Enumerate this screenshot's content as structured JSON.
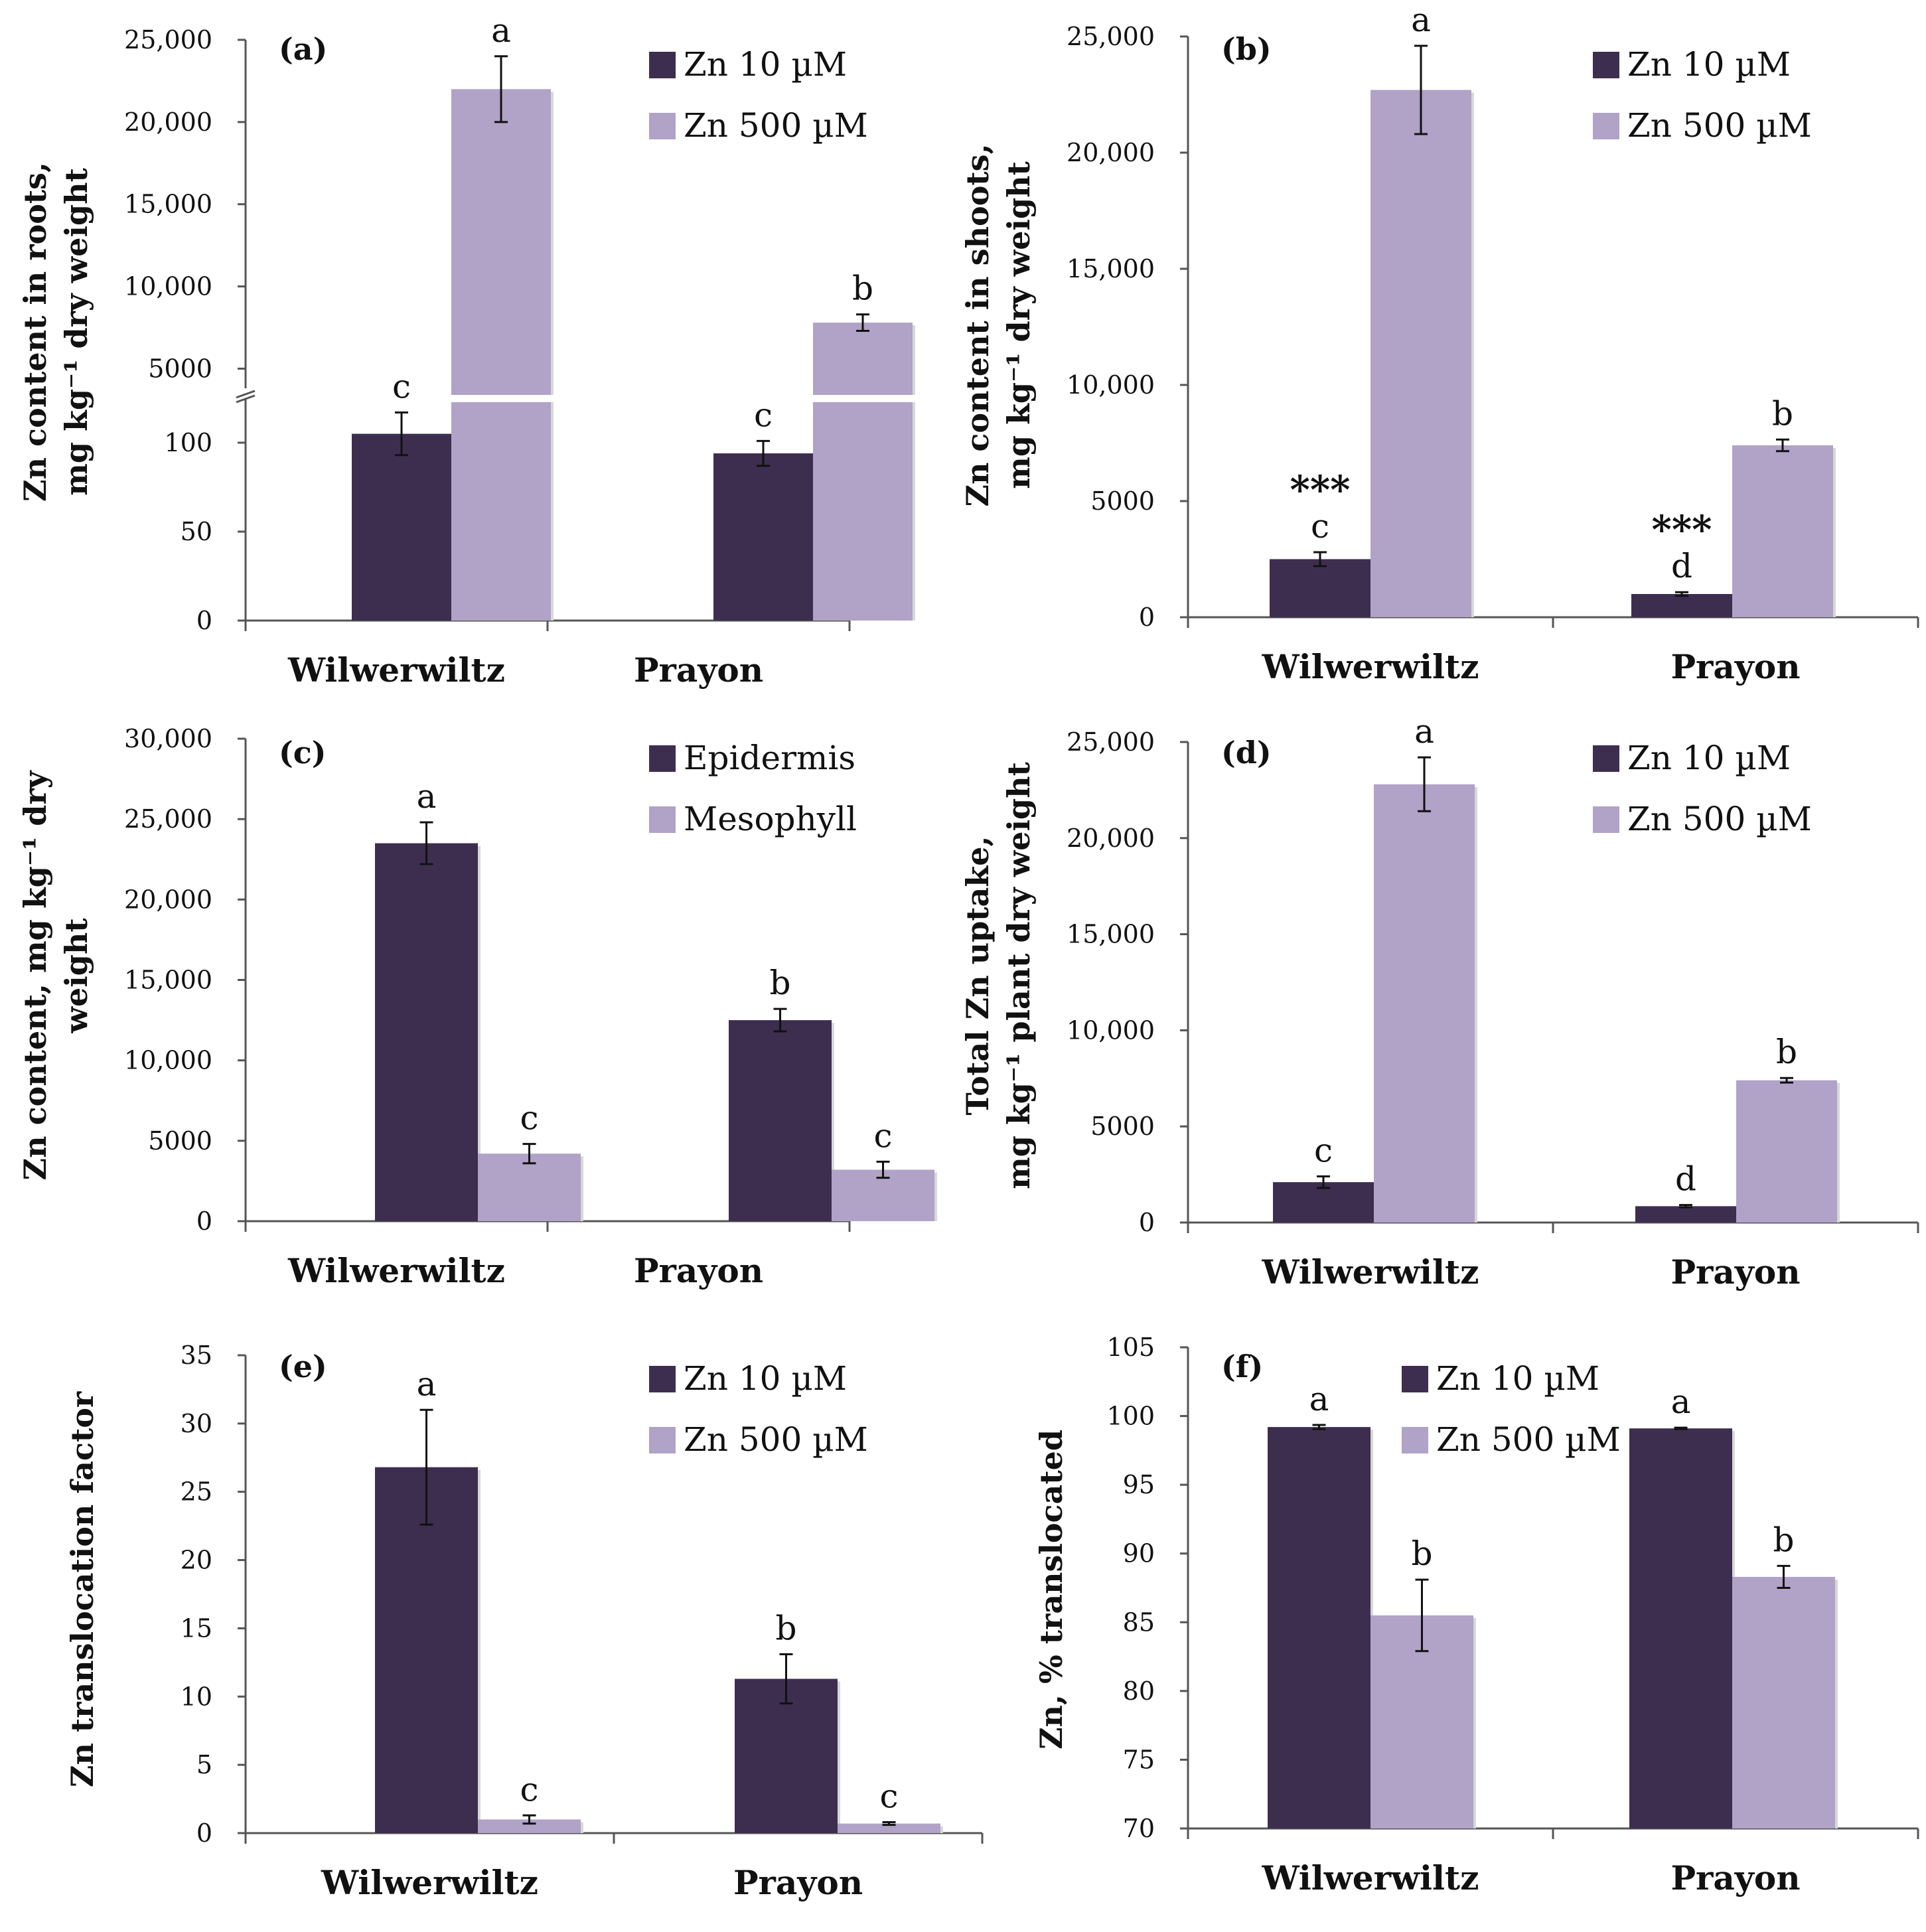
{
  "colors": {
    "dark": "#3d2e50",
    "light": "#b1a2c7",
    "axis": "#555555",
    "err": "#111111"
  },
  "chart_data": [
    {
      "type": "bar",
      "panel_label": "(a)",
      "ylabel": [
        "Zn content in roots,",
        "mg kg⁻¹ dry weight"
      ],
      "categories": [
        "Wilwerwiltz",
        "Prayon"
      ],
      "series": [
        {
          "name": "Zn 10 µM",
          "values": [
            105,
            94
          ],
          "errors": [
            12,
            7
          ],
          "sig": [
            "c",
            "c"
          ]
        },
        {
          "name": "Zn 500 µM",
          "values": [
            22000,
            7800
          ],
          "errors": [
            2000,
            500
          ],
          "sig": [
            "a",
            "b"
          ]
        }
      ],
      "axis_break": {
        "lower": {
          "range": [
            0,
            125
          ],
          "ticks": [
            0,
            50,
            100
          ],
          "tick_labels": [
            "0",
            "50",
            "100"
          ]
        },
        "upper": {
          "range": [
            3000,
            25000
          ],
          "ticks": [
            5000,
            10000,
            15000,
            20000,
            25000
          ],
          "tick_labels": [
            "5000",
            "10,000",
            "15,000",
            "20,000",
            "25,000"
          ]
        }
      }
    },
    {
      "type": "bar",
      "panel_label": "(b)",
      "ylabel": [
        "Zn content in shoots,",
        "mg kg⁻¹ dry weight"
      ],
      "categories": [
        "Wilwerwiltz",
        "Prayon"
      ],
      "ylim": [
        0,
        25000
      ],
      "yticks": [
        0,
        5000,
        10000,
        15000,
        20000,
        25000
      ],
      "ytick_labels": [
        "0",
        "5000",
        "10,000",
        "15,000",
        "20,000",
        "25,000"
      ],
      "series": [
        {
          "name": "Zn 10 µM",
          "values": [
            2500,
            1000
          ],
          "errors": [
            300,
            80
          ],
          "sig": [
            "c",
            "d"
          ],
          "stars": [
            "***",
            "***"
          ]
        },
        {
          "name": "Zn 500 µM",
          "values": [
            22700,
            7400
          ],
          "errors": [
            1900,
            250
          ],
          "sig": [
            "a",
            "b"
          ]
        }
      ]
    },
    {
      "type": "bar",
      "panel_label": "(c)",
      "ylabel": [
        "Zn content, mg kg⁻¹ dry",
        "weight"
      ],
      "categories": [
        "Wilwerwiltz",
        "Prayon"
      ],
      "ylim": [
        0,
        30000
      ],
      "yticks": [
        0,
        5000,
        10000,
        15000,
        20000,
        25000,
        30000
      ],
      "ytick_labels": [
        "0",
        "5000",
        "10,000",
        "15,000",
        "20,000",
        "25,000",
        "30,000"
      ],
      "series": [
        {
          "name": "Epidermis",
          "values": [
            23500,
            12500
          ],
          "errors": [
            1300,
            700
          ],
          "sig": [
            "a",
            "b"
          ]
        },
        {
          "name": "Mesophyll",
          "values": [
            4200,
            3200
          ],
          "errors": [
            600,
            500
          ],
          "sig": [
            "c",
            "c"
          ]
        }
      ]
    },
    {
      "type": "bar",
      "panel_label": "(d)",
      "ylabel": [
        "Total Zn uptake,",
        "mg kg⁻¹ plant dry weight"
      ],
      "categories": [
        "Wilwerwiltz",
        "Prayon"
      ],
      "ylim": [
        0,
        25000
      ],
      "yticks": [
        0,
        5000,
        10000,
        15000,
        20000,
        25000
      ],
      "ytick_labels": [
        "0",
        "5000",
        "10,000",
        "15,000",
        "20,000",
        "25,000"
      ],
      "series": [
        {
          "name": "Zn 10 µM",
          "values": [
            2100,
            850
          ],
          "errors": [
            300,
            60
          ],
          "sig": [
            "c",
            "d"
          ]
        },
        {
          "name": "Zn 500 µM",
          "values": [
            22800,
            7400
          ],
          "errors": [
            1400,
            120
          ],
          "sig": [
            "a",
            "b"
          ]
        }
      ]
    },
    {
      "type": "bar",
      "panel_label": "(e)",
      "ylabel": [
        "Zn translocation factor"
      ],
      "categories": [
        "Wilwerwiltz",
        "Prayon"
      ],
      "ylim": [
        0,
        35
      ],
      "yticks": [
        0,
        5,
        10,
        15,
        20,
        25,
        30,
        35
      ],
      "ytick_labels": [
        "0",
        "5",
        "10",
        "15",
        "20",
        "25",
        "30",
        "35"
      ],
      "series": [
        {
          "name": "Zn 10 µM",
          "values": [
            26.8,
            11.3
          ],
          "errors": [
            4.2,
            1.8
          ],
          "sig": [
            "a",
            "b"
          ]
        },
        {
          "name": "Zn 500 µM",
          "values": [
            1.0,
            0.7
          ],
          "errors": [
            0.3,
            0.1
          ],
          "sig": [
            "c",
            "c"
          ]
        }
      ]
    },
    {
      "type": "bar",
      "panel_label": "(f)",
      "ylabel": [
        "Zn, % translocated"
      ],
      "categories": [
        "Wilwerwiltz",
        "Prayon"
      ],
      "ylim": [
        70,
        105
      ],
      "yticks": [
        70,
        75,
        80,
        85,
        90,
        95,
        100,
        105
      ],
      "ytick_labels": [
        "70",
        "75",
        "80",
        "85",
        "90",
        "95",
        "100",
        "105"
      ],
      "series": [
        {
          "name": "Zn 10 µM",
          "values": [
            99.2,
            99.1
          ],
          "errors": [
            0.15,
            0.05
          ],
          "sig": [
            "a",
            "a"
          ]
        },
        {
          "name": "Zn 500 µM",
          "values": [
            85.5,
            88.3
          ],
          "errors": [
            2.6,
            0.8
          ],
          "sig": [
            "b",
            "b"
          ]
        }
      ]
    }
  ]
}
